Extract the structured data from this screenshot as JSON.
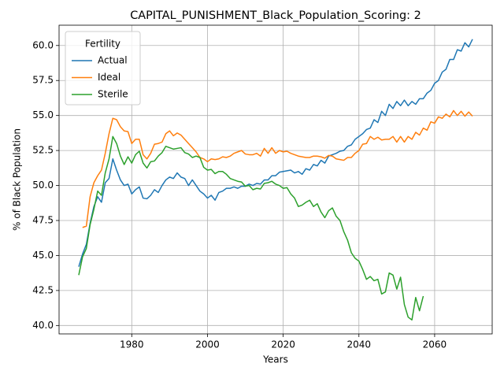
{
  "chart_data": {
    "type": "line",
    "title": "CAPITAL_PUNISHMENT_Black_Population_Scoring: 2",
    "x_label": "Years",
    "y_label": "% of Black Population",
    "legend_title": "Fertility",
    "legend_position": "upper left",
    "grid": true,
    "x": [
      1966,
      1967,
      1968,
      1969,
      1970,
      1971,
      1972,
      1973,
      1974,
      1975,
      1976,
      1977,
      1978,
      1979,
      1980,
      1981,
      1982,
      1983,
      1984,
      1985,
      1986,
      1987,
      1988,
      1989,
      1990,
      1991,
      1992,
      1993,
      1994,
      1995,
      1996,
      1997,
      1998,
      1999,
      2000,
      2001,
      2002,
      2003,
      2004,
      2005,
      2006,
      2007,
      2008,
      2009,
      2010,
      2011,
      2012,
      2013,
      2014,
      2015,
      2016,
      2017,
      2018,
      2019,
      2020,
      2021,
      2022,
      2023,
      2024,
      2025,
      2026,
      2027,
      2028,
      2029,
      2030,
      2031,
      2032,
      2033,
      2034,
      2035,
      2036,
      2037,
      2038,
      2039,
      2040,
      2041,
      2042,
      2043,
      2044,
      2045,
      2046,
      2047,
      2048,
      2049,
      2050,
      2051,
      2052,
      2053,
      2054,
      2055,
      2056,
      2057,
      2058,
      2059,
      2060,
      2061,
      2062,
      2063,
      2064,
      2065,
      2066,
      2067,
      2068,
      2069,
      2070
    ],
    "series": [
      {
        "name": "Actual",
        "color": "#1f77b4",
        "values": [
          44.2,
          45.1,
          45.8,
          47.3,
          48.5,
          49.2,
          48.8,
          50.2,
          50.5,
          51.9,
          51.1,
          50.4,
          50.0,
          50.1,
          49.4,
          49.7,
          49.9,
          49.1,
          49.05,
          49.3,
          49.7,
          49.5,
          50.0,
          50.4,
          50.6,
          50.5,
          50.9,
          50.6,
          50.5,
          50.0,
          50.4,
          50.0,
          49.6,
          49.4,
          49.1,
          49.3,
          48.95,
          49.5,
          49.6,
          49.8,
          49.8,
          49.9,
          49.8,
          49.95,
          49.95,
          50.1,
          50.0,
          50.15,
          50.1,
          50.4,
          50.4,
          50.7,
          50.7,
          50.95,
          51.0,
          51.05,
          51.1,
          50.9,
          51.0,
          50.8,
          51.2,
          51.1,
          51.5,
          51.4,
          51.8,
          51.6,
          52.1,
          52.2,
          52.3,
          52.45,
          52.5,
          52.8,
          52.9,
          53.3,
          53.5,
          53.7,
          54.0,
          54.1,
          54.7,
          54.5,
          55.3,
          55.0,
          55.8,
          55.5,
          56.0,
          55.7,
          56.1,
          55.7,
          56.0,
          55.8,
          56.2,
          56.2,
          56.6,
          56.8,
          57.3,
          57.5,
          58.1,
          58.3,
          59.0,
          59.0,
          59.7,
          59.6,
          60.2,
          59.9,
          60.45
        ]
      },
      {
        "name": "Ideal",
        "color": "#ff7f0e",
        "values": [
          null,
          47.0,
          47.1,
          49.2,
          50.2,
          50.7,
          51.1,
          52.3,
          53.7,
          54.8,
          54.7,
          54.2,
          53.9,
          53.85,
          53.0,
          53.3,
          53.3,
          52.2,
          51.9,
          52.3,
          52.95,
          53.0,
          53.1,
          53.7,
          53.9,
          53.55,
          53.75,
          53.6,
          53.3,
          53.0,
          52.7,
          52.4,
          52.0,
          51.9,
          51.7,
          51.9,
          51.85,
          51.9,
          52.05,
          52.0,
          52.1,
          52.3,
          52.4,
          52.5,
          52.25,
          52.2,
          52.2,
          52.3,
          52.1,
          52.65,
          52.3,
          52.7,
          52.3,
          52.5,
          52.4,
          52.45,
          52.3,
          52.2,
          52.1,
          52.05,
          52.0,
          52.0,
          52.1,
          52.1,
          52.05,
          51.95,
          52.15,
          52.1,
          51.9,
          51.85,
          51.8,
          52.0,
          52.0,
          52.3,
          52.5,
          52.95,
          53.0,
          53.5,
          53.3,
          53.45,
          53.25,
          53.3,
          53.3,
          53.5,
          53.1,
          53.5,
          53.1,
          53.5,
          53.3,
          53.8,
          53.6,
          54.1,
          53.95,
          54.55,
          54.45,
          54.9,
          54.8,
          55.1,
          54.9,
          55.35,
          55.0,
          55.3,
          54.95,
          55.25,
          54.95
        ]
      },
      {
        "name": "Sterile",
        "color": "#2ca02c",
        "values": [
          43.6,
          44.9,
          45.5,
          47.2,
          48.3,
          49.6,
          49.3,
          50.9,
          51.9,
          53.5,
          53.0,
          52.1,
          51.5,
          52.05,
          51.6,
          52.2,
          52.45,
          51.6,
          51.25,
          51.7,
          51.75,
          52.1,
          52.35,
          52.8,
          52.7,
          52.6,
          52.65,
          52.7,
          52.35,
          52.25,
          52.0,
          52.1,
          52.0,
          51.3,
          51.1,
          51.15,
          50.85,
          51.0,
          51.0,
          50.8,
          50.5,
          50.4,
          50.3,
          50.25,
          49.95,
          50.0,
          49.7,
          49.8,
          49.75,
          50.15,
          50.2,
          50.3,
          50.1,
          50.0,
          49.8,
          49.85,
          49.4,
          49.1,
          48.5,
          48.6,
          48.8,
          48.95,
          48.5,
          48.7,
          48.1,
          47.7,
          48.2,
          48.4,
          47.8,
          47.5,
          46.7,
          46.1,
          45.2,
          44.8,
          44.6,
          44.0,
          43.3,
          43.5,
          43.2,
          43.3,
          42.25,
          42.4,
          43.75,
          43.6,
          42.6,
          43.45,
          41.5,
          40.6,
          40.4,
          42.0,
          41.05,
          42.1,
          null,
          null,
          null,
          null,
          null,
          null,
          null,
          null,
          null,
          null,
          null,
          null,
          null
        ]
      }
    ],
    "xlim": [
      1960.8,
      2075.2
    ],
    "xticks": [
      1980,
      2000,
      2020,
      2040,
      2060
    ],
    "ylim": [
      39.4,
      61.45
    ],
    "yticks": [
      {
        "value": 40,
        "label": "40.0"
      },
      {
        "value": 42.5,
        "label": "42.5"
      },
      {
        "value": 45,
        "label": "45.0"
      },
      {
        "value": 47.5,
        "label": "47.5"
      },
      {
        "value": 50,
        "label": "50.0"
      },
      {
        "value": 52.5,
        "label": "52.5"
      },
      {
        "value": 55,
        "label": "55.0"
      },
      {
        "value": 57.5,
        "label": "57.5"
      },
      {
        "value": 60,
        "label": "60.0"
      }
    ]
  }
}
